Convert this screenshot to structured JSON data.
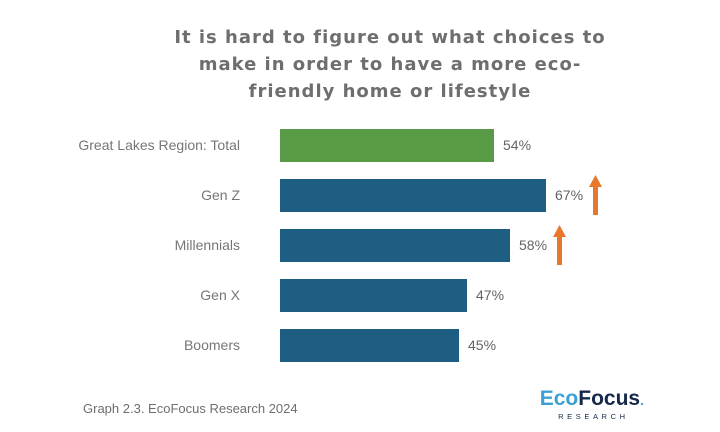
{
  "title": {
    "text": "It is hard to figure out what choices to make in order to have a more eco-friendly home or lifestyle",
    "lines": [
      "It is hard to figure out what choices to",
      "make in order to have a more eco-",
      "friendly home or lifestyle"
    ]
  },
  "chart_data": {
    "type": "bar",
    "orientation": "horizontal",
    "title": "It is hard to figure out what choices to make in order to have a more eco-friendly home or lifestyle",
    "categories": [
      "Great Lakes Region: Total",
      "Gen Z",
      "Millennials",
      "Gen X",
      "Boomers"
    ],
    "values": [
      54,
      67,
      58,
      47,
      45
    ],
    "value_labels": [
      "54%",
      "67%",
      "58%",
      "47%",
      "45%"
    ],
    "bar_colors": [
      "#599a46",
      "#1d5e82",
      "#1d5e82",
      "#1d5e82",
      "#1d5e82"
    ],
    "highlight_up_arrows": [
      false,
      true,
      true,
      false,
      false
    ],
    "arrow_color": "#e8762b",
    "xlim": [
      0,
      100
    ],
    "grid": false,
    "legend": false,
    "value_labels_position": "end-of-bar"
  },
  "footer": {
    "caption": "Graph 2.3. EcoFocus Research 2024"
  },
  "logo": {
    "eco": "Eco",
    "focus": "Focus",
    "dot": ".",
    "research": "RESEARCH"
  },
  "colors": {
    "background": "#ffffff",
    "title_text": "#6e6e6e",
    "category_label": "#767676",
    "value_label": "#646464",
    "green_bar": "#599a46",
    "blue_bar": "#1d5e82",
    "arrow_orange": "#e8762b",
    "logo_light_blue": "#3ba0d4",
    "logo_navy": "#16294b"
  }
}
